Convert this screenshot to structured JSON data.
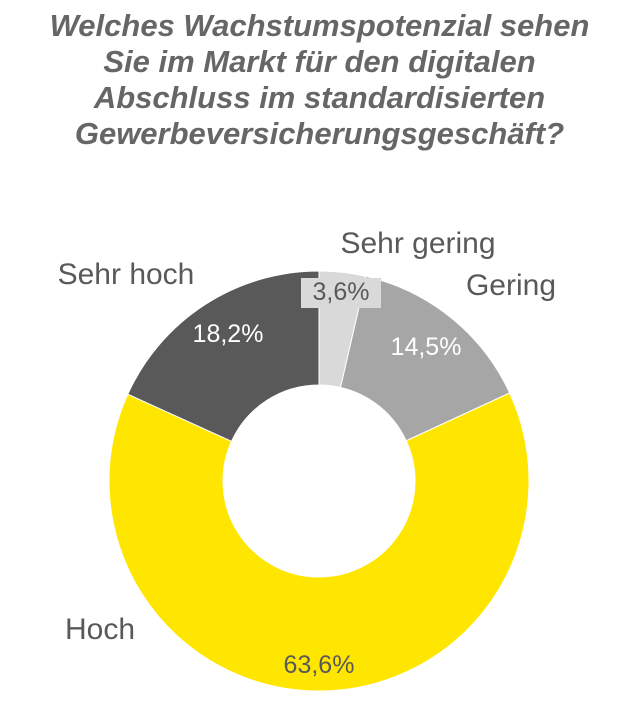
{
  "chart_data": {
    "type": "pie",
    "variant": "donut",
    "title_lines": [
      "Welches Wachstumspotenzial sehen",
      "Sie im Markt für den digitalen",
      "Abschluss im standardisierten",
      "Gewerbeversicherungsgeschäft?"
    ],
    "categories": [
      "Sehr gering",
      "Gering",
      "Hoch",
      "Sehr hoch"
    ],
    "values": [
      3.6,
      14.5,
      63.6,
      18.2
    ],
    "value_labels": [
      "3,6%",
      "14,5%",
      "63,6%",
      "18,2%"
    ],
    "colors": [
      "#d9d9d9",
      "#a6a6a6",
      "#ffe600",
      "#595959"
    ],
    "label_colors": [
      "#595959",
      "#ffffff",
      "#595959",
      "#ffffff"
    ],
    "legend": "none"
  }
}
